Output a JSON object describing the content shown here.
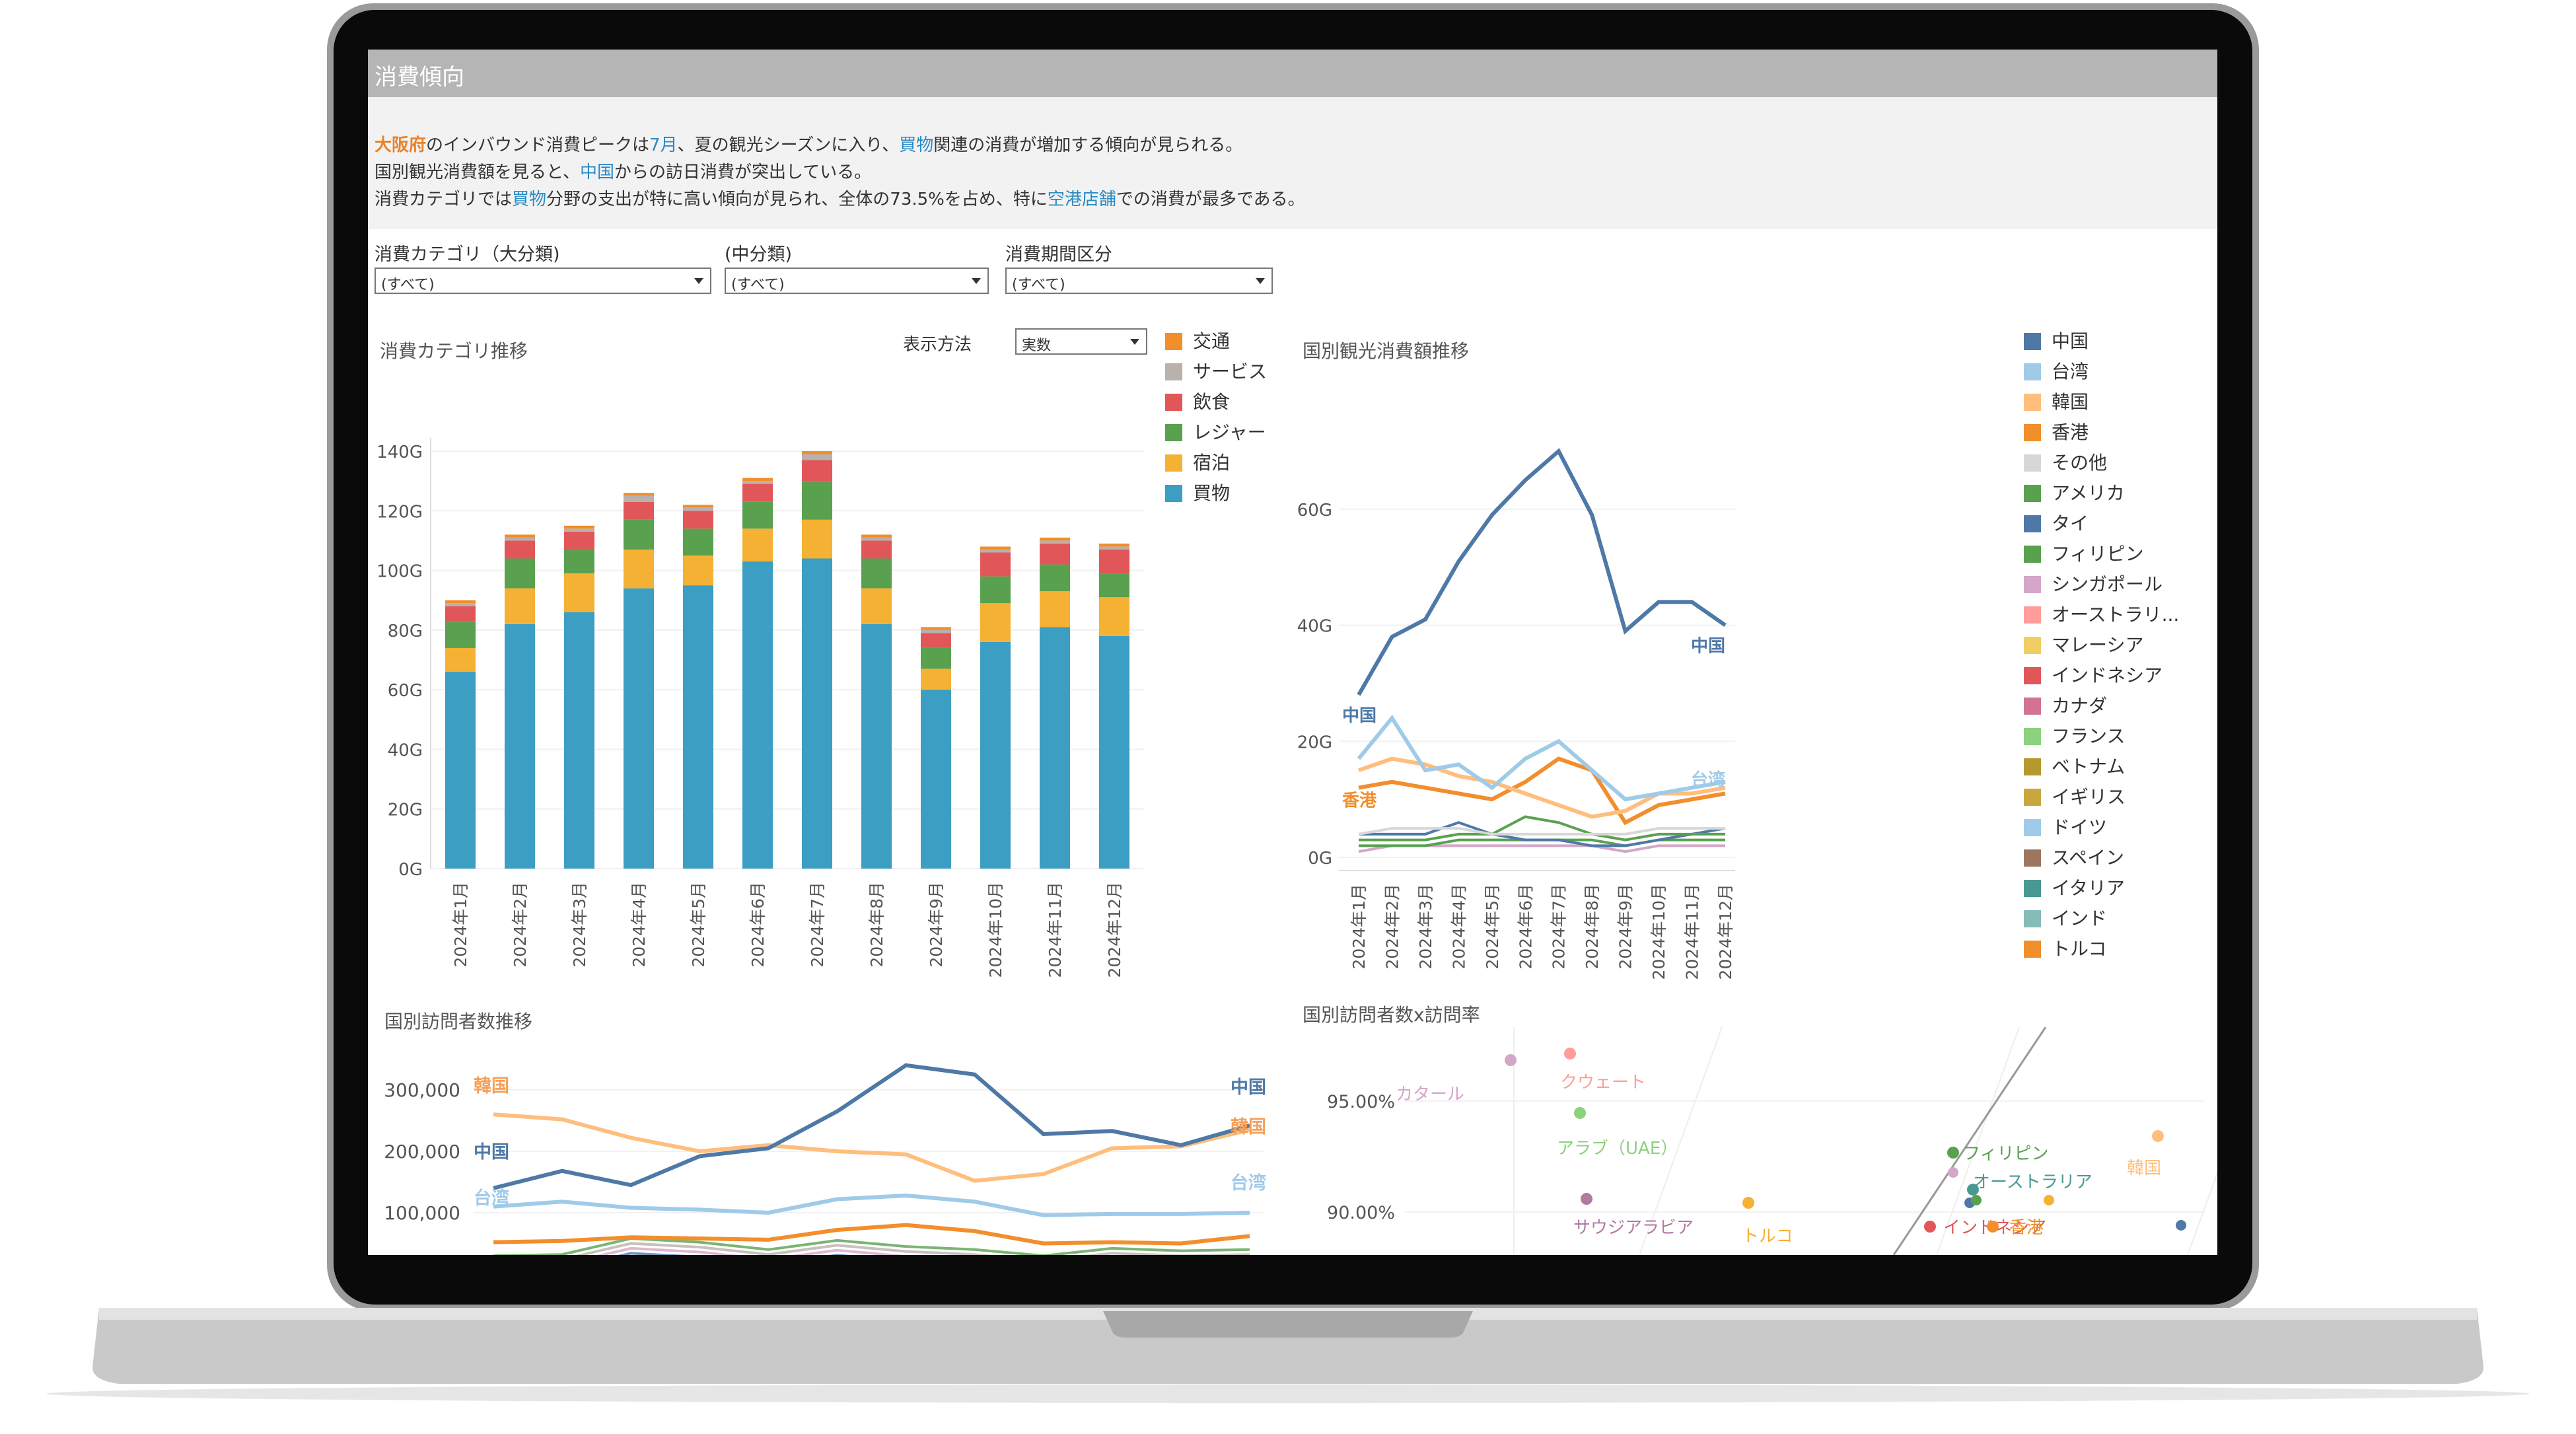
{
  "header": {
    "title": "消費傾向"
  },
  "summary": {
    "line1": {
      "pref": "大阪府",
      "t1": "のインバウンド消費ピークは",
      "month": "7月",
      "t2": "、夏の観光シーズンに入り、",
      "cat": "買物",
      "t3": "関連の消費が増加する傾向が見られる。"
    },
    "line2": {
      "t1": "国別観光消費額を見ると、",
      "country": "中国",
      "t2": "からの訪日消費が突出している。"
    },
    "line3": {
      "t1": "消費カテゴリでは",
      "cat": "買物",
      "t2": "分野の支出が特に高い傾向が見られ、全体の73.5%を占め、特に",
      "shop": "空港店舗",
      "t3": "での消費が最多である。"
    }
  },
  "filters": [
    {
      "label": "消費カテゴリ（大分類)",
      "value": "(すべて)"
    },
    {
      "label": "(中分類)",
      "value": "(すべて)"
    },
    {
      "label": "消費期間区分",
      "value": "(すべて)"
    }
  ],
  "display_mode": {
    "label": "表示方法",
    "value": "実数"
  },
  "colors": {
    "交通": "#f28e2b",
    "サービス": "#bab0ac",
    "飲食": "#e15759",
    "レジャー": "#59a14f",
    "宿泊": "#f5b133",
    "買物": "#3b9ec2"
  },
  "chart_data": [
    {
      "type": "bar",
      "title": "消費カテゴリ推移",
      "stacked": true,
      "categories": [
        "2024年1月",
        "2024年2月",
        "2024年3月",
        "2024年4月",
        "2024年5月",
        "2024年6月",
        "2024年7月",
        "2024年8月",
        "2024年9月",
        "2024年10月",
        "2024年11月",
        "2024年12月"
      ],
      "series": [
        {
          "name": "買物",
          "values": [
            66,
            82,
            86,
            94,
            95,
            103,
            104,
            82,
            60,
            76,
            81,
            78
          ]
        },
        {
          "name": "宿泊",
          "values": [
            8,
            12,
            13,
            13,
            10,
            11,
            13,
            12,
            7,
            13,
            12,
            13
          ]
        },
        {
          "name": "レジャー",
          "values": [
            9,
            10,
            8,
            10,
            9,
            9,
            13,
            10,
            7,
            9,
            9,
            8
          ]
        },
        {
          "name": "飲食",
          "values": [
            5,
            6,
            6,
            6,
            6,
            6,
            7,
            6,
            5,
            8,
            7,
            8
          ]
        },
        {
          "name": "サービス",
          "values": [
            1,
            1,
            1,
            2,
            1,
            1,
            2,
            1,
            1,
            1,
            1,
            1
          ]
        },
        {
          "name": "交通",
          "values": [
            1,
            1,
            1,
            1,
            1,
            1,
            1,
            1,
            1,
            1,
            1,
            1
          ]
        }
      ],
      "yticks": [
        "0G",
        "20G",
        "40G",
        "60G",
        "80G",
        "100G",
        "120G",
        "140G"
      ],
      "ylim": [
        0,
        140
      ],
      "legend_position": "right"
    },
    {
      "type": "line",
      "title": "国別観光消費額推移",
      "x": [
        "2024年1月",
        "2024年2月",
        "2024年3月",
        "2024年4月",
        "2024年5月",
        "2024年6月",
        "2024年7月",
        "2024年8月",
        "2024年9月",
        "2024年10月",
        "2024年11月",
        "2024年12月"
      ],
      "yticks": [
        "0G",
        "20G",
        "40G",
        "60G"
      ],
      "ylim": [
        0,
        70
      ],
      "series": [
        {
          "name": "中国",
          "color": "#4e79a7",
          "values": [
            28,
            38,
            41,
            51,
            59,
            65,
            70,
            59,
            39,
            44,
            44,
            40
          ]
        },
        {
          "name": "台湾",
          "color": "#a0cbe8",
          "values": [
            17,
            24,
            15,
            16,
            12,
            17,
            20,
            15,
            10,
            11,
            12,
            13
          ]
        },
        {
          "name": "韓国",
          "color": "#ffbe7d",
          "values": [
            15,
            17,
            16,
            14,
            13,
            11,
            9,
            7,
            8,
            11,
            11,
            12
          ]
        },
        {
          "name": "香港",
          "color": "#f28e2b",
          "values": [
            12,
            13,
            12,
            11,
            10,
            13,
            17,
            15,
            6,
            9,
            10,
            11
          ]
        },
        {
          "name": "その他",
          "color": "#d7d7d7",
          "values": [
            4,
            5,
            5,
            5,
            4,
            4,
            4,
            4,
            4,
            5,
            5,
            5
          ]
        },
        {
          "name": "アメリカ",
          "color": "#59a14f",
          "values": [
            3,
            3,
            3,
            4,
            4,
            7,
            6,
            4,
            3,
            4,
            4,
            4
          ]
        },
        {
          "name": "タイ",
          "color": "#4e79a7",
          "values": [
            4,
            4,
            4,
            6,
            4,
            3,
            3,
            2,
            2,
            3,
            4,
            5
          ]
        },
        {
          "name": "フィリピン",
          "color": "#59a14f",
          "values": [
            2,
            2,
            2,
            3,
            3,
            3,
            3,
            3,
            2,
            3,
            3,
            3
          ]
        },
        {
          "name": "シンガポール",
          "color": "#d4a6c8",
          "values": [
            1,
            2,
            2,
            2,
            2,
            2,
            2,
            2,
            1,
            2,
            2,
            2
          ]
        }
      ],
      "legend_entries": [
        {
          "name": "中国",
          "color": "#4e79a7"
        },
        {
          "name": "台湾",
          "color": "#a0cbe8"
        },
        {
          "name": "韓国",
          "color": "#ffbe7d"
        },
        {
          "name": "香港",
          "color": "#f28e2b"
        },
        {
          "name": "その他",
          "color": "#d7d7d7"
        },
        {
          "name": "アメリカ",
          "color": "#59a14f"
        },
        {
          "name": "タイ",
          "color": "#4e79a7"
        },
        {
          "name": "フィリピン",
          "color": "#59a14f"
        },
        {
          "name": "シンガポール",
          "color": "#d4a6c8"
        },
        {
          "name": "オーストラリ...",
          "color": "#ff9d9a"
        },
        {
          "name": "マレーシア",
          "color": "#f1ce63"
        },
        {
          "name": "インドネシア",
          "color": "#e15759"
        },
        {
          "name": "カナダ",
          "color": "#d37295"
        },
        {
          "name": "フランス",
          "color": "#8cd17d"
        },
        {
          "name": "ベトナム",
          "color": "#b6992d"
        },
        {
          "name": "イギリス",
          "color": "#c9a73f"
        },
        {
          "name": "ドイツ",
          "color": "#a0cbe8"
        },
        {
          "name": "スペイン",
          "color": "#9d7660"
        },
        {
          "name": "イタリア",
          "color": "#499894"
        },
        {
          "name": "インド",
          "color": "#86bcb6"
        },
        {
          "name": "トルコ",
          "color": "#f28e2b"
        }
      ],
      "annotations": [
        "中国",
        "中国",
        "台湾",
        "香港"
      ]
    },
    {
      "type": "line",
      "title": "国別訪問者数推移",
      "yticks": [
        "100,000",
        "200,000",
        "300,000"
      ],
      "series": [
        {
          "name": "中国",
          "color": "#4e79a7",
          "values": [
            140000,
            168000,
            145000,
            192000,
            205000,
            265000,
            340000,
            325000,
            228000,
            233000,
            210000,
            242000
          ]
        },
        {
          "name": "韓国",
          "color": "#ffbe7d",
          "values": [
            260000,
            252000,
            222000,
            200000,
            210000,
            200000,
            195000,
            152000,
            163000,
            205000,
            208000,
            235000
          ]
        },
        {
          "name": "台湾",
          "color": "#a0cbe8",
          "values": [
            110000,
            118000,
            108000,
            105000,
            100000,
            122000,
            128000,
            118000,
            96000,
            98000,
            98000,
            100000
          ]
        },
        {
          "name": "香港",
          "color": "#f28e2b",
          "values": [
            52000,
            54000,
            60000,
            58000,
            56000,
            72000,
            80000,
            70000,
            50000,
            52000,
            50000,
            62000
          ]
        }
      ],
      "annotations": [
        "韓国",
        "中国",
        "中国",
        "韓国",
        "台湾",
        "台湾"
      ]
    },
    {
      "type": "scatter",
      "title": "国別訪問者数x訪問率",
      "yticks": [
        "90.00%",
        "95.00%"
      ],
      "points": [
        {
          "label": "カタール",
          "color": "#d4a6c8"
        },
        {
          "label": "クウェート",
          "color": "#ff9d9a"
        },
        {
          "label": "アラブ（UAE）",
          "color": "#8cd17d"
        },
        {
          "label": "サウジアラビア",
          "color": "#b07aa1"
        },
        {
          "label": "トルコ",
          "color": "#f5b133"
        },
        {
          "label": "フィリピン",
          "color": "#59a14f"
        },
        {
          "label": "オーストラリア",
          "color": "#499894"
        },
        {
          "label": "韓国",
          "color": "#ffbe7d"
        },
        {
          "label": "インドネシア",
          "color": "#e15759"
        },
        {
          "label": "香港",
          "color": "#f28e2b"
        }
      ]
    }
  ]
}
